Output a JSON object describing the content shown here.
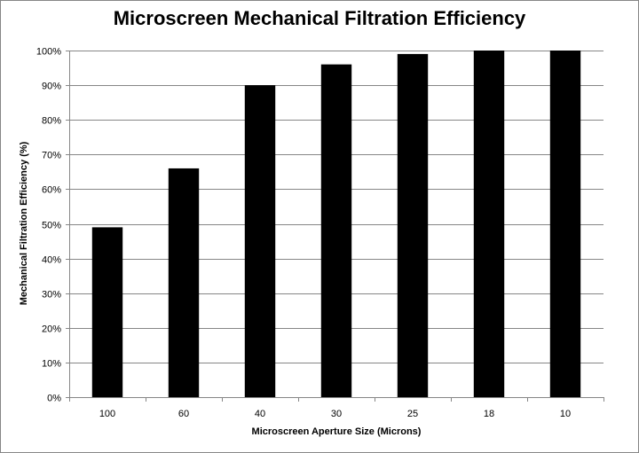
{
  "chart_data": {
    "type": "bar",
    "title": "Microscreen Mechanical Filtration Efficiency",
    "xlabel": "Microscreen Aperture Size (Microns)",
    "ylabel": "Mechanical  Filtration Efficiency  (%)",
    "categories": [
      "100",
      "60",
      "40",
      "30",
      "25",
      "18",
      "10"
    ],
    "values": [
      49,
      66,
      90,
      96,
      99,
      100,
      100
    ],
    "ylim": [
      0,
      100
    ],
    "yticks": [
      "0%",
      "10%",
      "20%",
      "30%",
      "40%",
      "50%",
      "60%",
      "70%",
      "80%",
      "90%",
      "100%"
    ],
    "grid": true,
    "legend": "none",
    "bar_color": "#000000",
    "grid_color": "#868686"
  }
}
